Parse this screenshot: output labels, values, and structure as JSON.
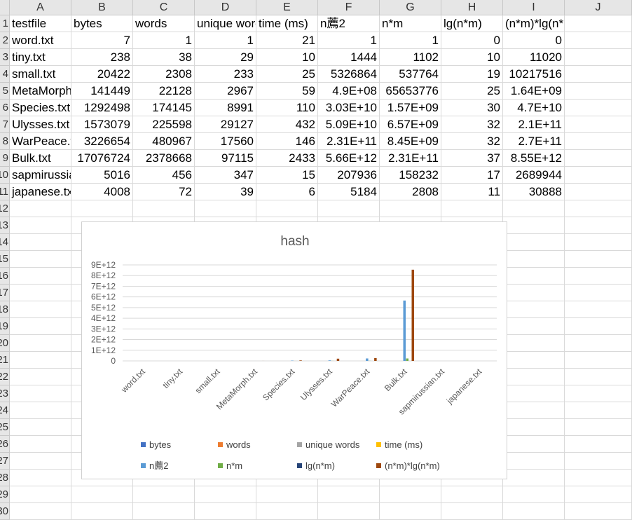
{
  "columns": [
    "A",
    "B",
    "C",
    "D",
    "E",
    "F",
    "G",
    "H",
    "I",
    "J"
  ],
  "rows": [
    [
      "testfile",
      "bytes",
      "words",
      "unique words",
      "time (ms)",
      "n薦2",
      "n*m",
      "lg(n*m)",
      "(n*m)*lg(n*m)",
      ""
    ],
    [
      "word.txt",
      "7",
      "1",
      "1",
      "21",
      "1",
      "1",
      "0",
      "0",
      ""
    ],
    [
      "tiny.txt",
      "238",
      "38",
      "29",
      "10",
      "1444",
      "1102",
      "10",
      "11020",
      ""
    ],
    [
      "small.txt",
      "20422",
      "2308",
      "233",
      "25",
      "5326864",
      "537764",
      "19",
      "10217516",
      ""
    ],
    [
      "MetaMorph.txt",
      "141449",
      "22128",
      "2967",
      "59",
      "4.9E+08",
      "65653776",
      "25",
      "1.64E+09",
      ""
    ],
    [
      "Species.txt",
      "1292498",
      "174145",
      "8991",
      "110",
      "3.03E+10",
      "1.57E+09",
      "30",
      "4.7E+10",
      ""
    ],
    [
      "Ulysses.txt",
      "1573079",
      "225598",
      "29127",
      "432",
      "5.09E+10",
      "6.57E+09",
      "32",
      "2.1E+11",
      ""
    ],
    [
      "WarPeace.txt",
      "3226654",
      "480967",
      "17560",
      "146",
      "2.31E+11",
      "8.45E+09",
      "32",
      "2.7E+11",
      ""
    ],
    [
      "Bulk.txt",
      "17076724",
      "2378668",
      "97115",
      "2433",
      "5.66E+12",
      "2.31E+11",
      "37",
      "8.55E+12",
      ""
    ],
    [
      "sapmirussian.txt",
      "5016",
      "456",
      "347",
      "15",
      "207936",
      "158232",
      "17",
      "2689944",
      ""
    ],
    [
      "japanese.txt",
      "4008",
      "72",
      "39",
      "6",
      "5184",
      "2808",
      "11",
      "30888",
      ""
    ]
  ],
  "row_numbers": [
    "1",
    "2",
    "3",
    "4",
    "5",
    "6",
    "7",
    "8",
    "9",
    "10",
    "11",
    "12",
    "13",
    "14",
    "15",
    "16",
    "17",
    "18",
    "19",
    "20",
    "21",
    "22",
    "23",
    "24",
    "25",
    "26",
    "27",
    "28",
    "29",
    "30"
  ],
  "chart_data": {
    "type": "bar",
    "title": "hash",
    "categories": [
      "word.txt",
      "tiny.txt",
      "small.txt",
      "MetaMorph.txt",
      "Species.txt",
      "Ulysses.txt",
      "WarPeace.txt",
      "Bulk.txt",
      "sapmirussian.txt",
      "japanese.txt"
    ],
    "ylim": [
      0,
      9000000000000
    ],
    "yticks": [
      "0",
      "1E+12",
      "2E+12",
      "3E+12",
      "4E+12",
      "5E+12",
      "6E+12",
      "7E+12",
      "8E+12",
      "9E+12"
    ],
    "grid": true,
    "legend": "bottom",
    "series": [
      {
        "name": "bytes",
        "color": "#4472c4",
        "values": [
          7,
          238,
          20422,
          141449,
          1292498,
          1573079,
          3226654,
          17076724,
          5016,
          4008
        ]
      },
      {
        "name": "words",
        "color": "#ed7d31",
        "values": [
          1,
          38,
          2308,
          22128,
          174145,
          225598,
          480967,
          2378668,
          456,
          72
        ]
      },
      {
        "name": "unique words",
        "color": "#a5a5a5",
        "values": [
          1,
          29,
          233,
          2967,
          8991,
          29127,
          17560,
          97115,
          347,
          39
        ]
      },
      {
        "name": "time (ms)",
        "color": "#ffc000",
        "values": [
          21,
          10,
          25,
          59,
          110,
          432,
          146,
          2433,
          15,
          6
        ]
      },
      {
        "name": "n薦2",
        "color": "#5b9bd5",
        "values": [
          1,
          1444,
          5326864,
          490000000,
          30300000000,
          50900000000,
          231000000000,
          5660000000000,
          207936,
          5184
        ]
      },
      {
        "name": "n*m",
        "color": "#70ad47",
        "values": [
          1,
          1102,
          537764,
          65653776,
          1570000000,
          6570000000,
          8450000000,
          231000000000,
          158232,
          2808
        ]
      },
      {
        "name": "lg(n*m)",
        "color": "#264478",
        "values": [
          0,
          10,
          19,
          25,
          30,
          32,
          32,
          37,
          17,
          11
        ]
      },
      {
        "name": "(n*m)*lg(n*m)",
        "color": "#9e480e",
        "values": [
          0,
          11020,
          10217516,
          1640000000,
          47000000000,
          210000000000,
          270000000000,
          8550000000000,
          2689944,
          30888
        ]
      }
    ]
  }
}
